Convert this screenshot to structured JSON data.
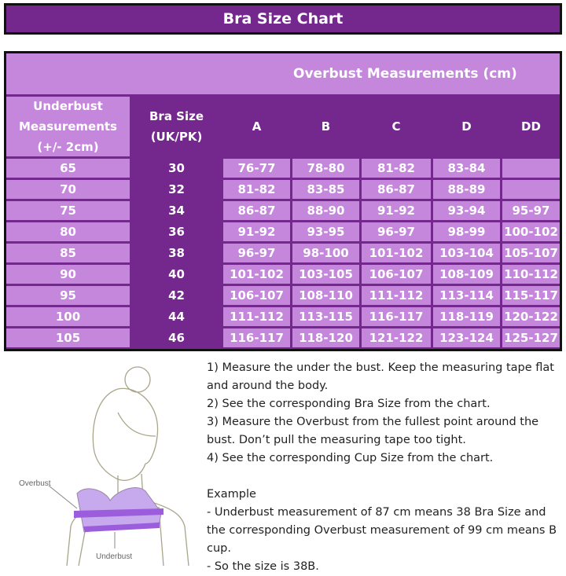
{
  "title": "Bra Size Chart",
  "table": {
    "overbust_header": "Overbust Measurements (cm)",
    "underbust_header": "Underbust Measurements (+/- 2cm)",
    "bra_size_header": "Bra Size (UK/PK)",
    "cups": [
      "A",
      "B",
      "C",
      "D",
      "DD"
    ],
    "rows": [
      {
        "underbust": "65",
        "size": "30",
        "cups": [
          "76-77",
          "78-80",
          "81-82",
          "83-84",
          ""
        ]
      },
      {
        "underbust": "70",
        "size": "32",
        "cups": [
          "81-82",
          "83-85",
          "86-87",
          "88-89",
          ""
        ]
      },
      {
        "underbust": "75",
        "size": "34",
        "cups": [
          "86-87",
          "88-90",
          "91-92",
          "93-94",
          "95-97"
        ]
      },
      {
        "underbust": "80",
        "size": "36",
        "cups": [
          "91-92",
          "93-95",
          "96-97",
          "98-99",
          "100-102"
        ]
      },
      {
        "underbust": "85",
        "size": "38",
        "cups": [
          "96-97",
          "98-100",
          "101-102",
          "103-104",
          "105-107"
        ]
      },
      {
        "underbust": "90",
        "size": "40",
        "cups": [
          "101-102",
          "103-105",
          "106-107",
          "108-109",
          "110-112"
        ]
      },
      {
        "underbust": "95",
        "size": "42",
        "cups": [
          "106-107",
          "108-110",
          "111-112",
          "113-114",
          "115-117"
        ]
      },
      {
        "underbust": "100",
        "size": "44",
        "cups": [
          "111-112",
          "113-115",
          "116-117",
          "118-119",
          "120-122"
        ]
      },
      {
        "underbust": "105",
        "size": "46",
        "cups": [
          "116-117",
          "118-120",
          "121-122",
          "123-124",
          "125-127"
        ]
      }
    ]
  },
  "illustration": {
    "overbust_label": "Overbust",
    "underbust_label": "Underbust"
  },
  "instructions": {
    "steps": [
      "1) Measure the under the bust. Keep the measuring tape flat and around the body.",
      "2) See the corresponding Bra Size from the chart.",
      "3) Measure the Overbust from the fullest point around the bust. Don’t pull the measuring tape too tight.",
      "4) See the corresponding Cup Size from the chart."
    ],
    "example_heading": "Example",
    "example_lines": [
      "- Underbust measurement of 87 cm means 38 Bra Size and the corresponding Overbust measurement of 99 cm means B cup.",
      "- So the size is 38B."
    ]
  },
  "colors": {
    "dark_purple": "#74288d",
    "light_purple": "#c487dc",
    "border": "#111111"
  }
}
